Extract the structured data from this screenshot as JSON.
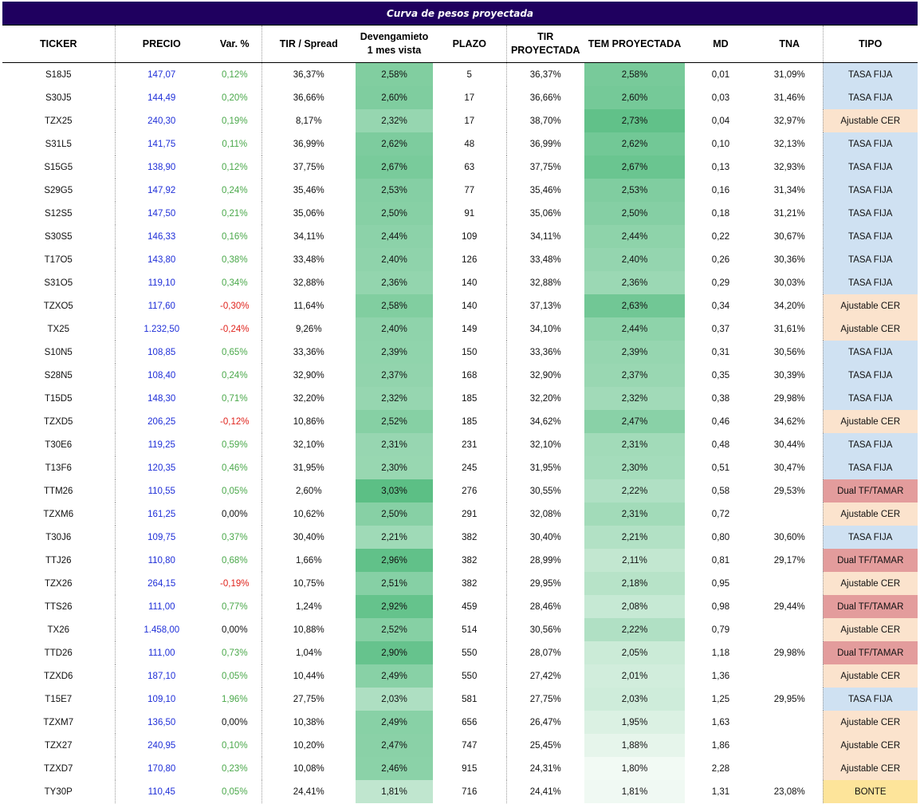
{
  "title": "Curva de pesos proyectada",
  "headers": {
    "ticker": "TICKER",
    "precio": "PRECIO",
    "var": "Var. %",
    "tir_spread": "TIR / Spread",
    "deveng_1": "Devengamieto",
    "deveng_2": "1 mes vista",
    "plazo": "PLAZO",
    "tirp_1": "TIR",
    "tirp_2": "PROYECTADA",
    "tem": "TEM PROYECTADA",
    "md": "MD",
    "tna": "TNA",
    "tipo": "TIPO"
  },
  "colors": {
    "title_bg": "#1f005f",
    "price": "#1f2fd8",
    "var_positive": "#4aa84a",
    "var_negative": "#e0241d",
    "tasa_fija": "#cfe1f2",
    "ajustable_cer": "#fbe3cd",
    "dual": "#e39c9c",
    "bonte": "#fde49a",
    "green_scale_low": "#f2faf4",
    "green_scale_high": "#56bd81"
  },
  "rows": [
    {
      "ticker": "S18J5",
      "precio": "147,07",
      "var": "0,12%",
      "tir": "36,37%",
      "deveng": "2,58%",
      "plazo": "5",
      "tirp": "36,37%",
      "tem": "2,58%",
      "md": "0,01",
      "tna": "31,09%",
      "tipo": "TASA FIJA"
    },
    {
      "ticker": "S30J5",
      "precio": "144,49",
      "var": "0,20%",
      "tir": "36,66%",
      "deveng": "2,60%",
      "plazo": "17",
      "tirp": "36,66%",
      "tem": "2,60%",
      "md": "0,03",
      "tna": "31,46%",
      "tipo": "TASA FIJA"
    },
    {
      "ticker": "TZX25",
      "precio": "240,30",
      "var": "0,19%",
      "tir": "8,17%",
      "deveng": "2,32%",
      "plazo": "17",
      "tirp": "38,70%",
      "tem": "2,73%",
      "md": "0,04",
      "tna": "32,97%",
      "tipo": "Ajustable CER"
    },
    {
      "ticker": "S31L5",
      "precio": "141,75",
      "var": "0,11%",
      "tir": "36,99%",
      "deveng": "2,62%",
      "plazo": "48",
      "tirp": "36,99%",
      "tem": "2,62%",
      "md": "0,10",
      "tna": "32,13%",
      "tipo": "TASA FIJA"
    },
    {
      "ticker": "S15G5",
      "precio": "138,90",
      "var": "0,12%",
      "tir": "37,75%",
      "deveng": "2,67%",
      "plazo": "63",
      "tirp": "37,75%",
      "tem": "2,67%",
      "md": "0,13",
      "tna": "32,93%",
      "tipo": "TASA FIJA"
    },
    {
      "ticker": "S29G5",
      "precio": "147,92",
      "var": "0,24%",
      "tir": "35,46%",
      "deveng": "2,53%",
      "plazo": "77",
      "tirp": "35,46%",
      "tem": "2,53%",
      "md": "0,16",
      "tna": "31,34%",
      "tipo": "TASA FIJA"
    },
    {
      "ticker": "S12S5",
      "precio": "147,50",
      "var": "0,21%",
      "tir": "35,06%",
      "deveng": "2,50%",
      "plazo": "91",
      "tirp": "35,06%",
      "tem": "2,50%",
      "md": "0,18",
      "tna": "31,21%",
      "tipo": "TASA FIJA"
    },
    {
      "ticker": "S30S5",
      "precio": "146,33",
      "var": "0,16%",
      "tir": "34,11%",
      "deveng": "2,44%",
      "plazo": "109",
      "tirp": "34,11%",
      "tem": "2,44%",
      "md": "0,22",
      "tna": "30,67%",
      "tipo": "TASA FIJA"
    },
    {
      "ticker": "T17O5",
      "precio": "143,80",
      "var": "0,38%",
      "tir": "33,48%",
      "deveng": "2,40%",
      "plazo": "126",
      "tirp": "33,48%",
      "tem": "2,40%",
      "md": "0,26",
      "tna": "30,36%",
      "tipo": "TASA FIJA"
    },
    {
      "ticker": "S31O5",
      "precio": "119,10",
      "var": "0,34%",
      "tir": "32,88%",
      "deveng": "2,36%",
      "plazo": "140",
      "tirp": "32,88%",
      "tem": "2,36%",
      "md": "0,29",
      "tna": "30,03%",
      "tipo": "TASA FIJA"
    },
    {
      "ticker": "TZXO5",
      "precio": "117,60",
      "var": "-0,30%",
      "tir": "11,64%",
      "deveng": "2,58%",
      "plazo": "140",
      "tirp": "37,13%",
      "tem": "2,63%",
      "md": "0,34",
      "tna": "34,20%",
      "tipo": "Ajustable CER"
    },
    {
      "ticker": "TX25",
      "precio": "1.232,50",
      "var": "-0,24%",
      "tir": "9,26%",
      "deveng": "2,40%",
      "plazo": "149",
      "tirp": "34,10%",
      "tem": "2,44%",
      "md": "0,37",
      "tna": "31,61%",
      "tipo": "Ajustable CER"
    },
    {
      "ticker": "S10N5",
      "precio": "108,85",
      "var": "0,65%",
      "tir": "33,36%",
      "deveng": "2,39%",
      "plazo": "150",
      "tirp": "33,36%",
      "tem": "2,39%",
      "md": "0,31",
      "tna": "30,56%",
      "tipo": "TASA FIJA"
    },
    {
      "ticker": "S28N5",
      "precio": "108,40",
      "var": "0,24%",
      "tir": "32,90%",
      "deveng": "2,37%",
      "plazo": "168",
      "tirp": "32,90%",
      "tem": "2,37%",
      "md": "0,35",
      "tna": "30,39%",
      "tipo": "TASA FIJA"
    },
    {
      "ticker": "T15D5",
      "precio": "148,30",
      "var": "0,71%",
      "tir": "32,20%",
      "deveng": "2,32%",
      "plazo": "185",
      "tirp": "32,20%",
      "tem": "2,32%",
      "md": "0,38",
      "tna": "29,98%",
      "tipo": "TASA FIJA"
    },
    {
      "ticker": "TZXD5",
      "precio": "206,25",
      "var": "-0,12%",
      "tir": "10,86%",
      "deveng": "2,52%",
      "plazo": "185",
      "tirp": "34,62%",
      "tem": "2,47%",
      "md": "0,46",
      "tna": "34,62%",
      "tipo": "Ajustable CER"
    },
    {
      "ticker": "T30E6",
      "precio": "119,25",
      "var": "0,59%",
      "tir": "32,10%",
      "deveng": "2,31%",
      "plazo": "231",
      "tirp": "32,10%",
      "tem": "2,31%",
      "md": "0,48",
      "tna": "30,44%",
      "tipo": "TASA FIJA"
    },
    {
      "ticker": "T13F6",
      "precio": "120,35",
      "var": "0,46%",
      "tir": "31,95%",
      "deveng": "2,30%",
      "plazo": "245",
      "tirp": "31,95%",
      "tem": "2,30%",
      "md": "0,51",
      "tna": "30,47%",
      "tipo": "TASA FIJA"
    },
    {
      "ticker": "TTM26",
      "precio": "110,55",
      "var": "0,05%",
      "tir": "2,60%",
      "deveng": "3,03%",
      "plazo": "276",
      "tirp": "30,55%",
      "tem": "2,22%",
      "md": "0,58",
      "tna": "29,53%",
      "tipo": "Dual TF/TAMAR"
    },
    {
      "ticker": "TZXM6",
      "precio": "161,25",
      "var": "0,00%",
      "tir": "10,62%",
      "deveng": "2,50%",
      "plazo": "291",
      "tirp": "32,08%",
      "tem": "2,31%",
      "md": "0,72",
      "tna": "",
      "tipo": "Ajustable CER"
    },
    {
      "ticker": "T30J6",
      "precio": "109,75",
      "var": "0,37%",
      "tir": "30,40%",
      "deveng": "2,21%",
      "plazo": "382",
      "tirp": "30,40%",
      "tem": "2,21%",
      "md": "0,80",
      "tna": "30,60%",
      "tipo": "TASA FIJA"
    },
    {
      "ticker": "TTJ26",
      "precio": "110,80",
      "var": "0,68%",
      "tir": "1,66%",
      "deveng": "2,96%",
      "plazo": "382",
      "tirp": "28,99%",
      "tem": "2,11%",
      "md": "0,81",
      "tna": "29,17%",
      "tipo": "Dual TF/TAMAR"
    },
    {
      "ticker": "TZX26",
      "precio": "264,15",
      "var": "-0,19%",
      "tir": "10,75%",
      "deveng": "2,51%",
      "plazo": "382",
      "tirp": "29,95%",
      "tem": "2,18%",
      "md": "0,95",
      "tna": "",
      "tipo": "Ajustable CER"
    },
    {
      "ticker": "TTS26",
      "precio": "111,00",
      "var": "0,77%",
      "tir": "1,24%",
      "deveng": "2,92%",
      "plazo": "459",
      "tirp": "28,46%",
      "tem": "2,08%",
      "md": "0,98",
      "tna": "29,44%",
      "tipo": "Dual TF/TAMAR"
    },
    {
      "ticker": "TX26",
      "precio": "1.458,00",
      "var": "0,00%",
      "tir": "10,88%",
      "deveng": "2,52%",
      "plazo": "514",
      "tirp": "30,56%",
      "tem": "2,22%",
      "md": "0,79",
      "tna": "",
      "tipo": "Ajustable CER"
    },
    {
      "ticker": "TTD26",
      "precio": "111,00",
      "var": "0,73%",
      "tir": "1,04%",
      "deveng": "2,90%",
      "plazo": "550",
      "tirp": "28,07%",
      "tem": "2,05%",
      "md": "1,18",
      "tna": "29,98%",
      "tipo": "Dual TF/TAMAR"
    },
    {
      "ticker": "TZXD6",
      "precio": "187,10",
      "var": "0,05%",
      "tir": "10,44%",
      "deveng": "2,49%",
      "plazo": "550",
      "tirp": "27,42%",
      "tem": "2,01%",
      "md": "1,36",
      "tna": "",
      "tipo": "Ajustable CER"
    },
    {
      "ticker": "T15E7",
      "precio": "109,10",
      "var": "1,96%",
      "tir": "27,75%",
      "deveng": "2,03%",
      "plazo": "581",
      "tirp": "27,75%",
      "tem": "2,03%",
      "md": "1,25",
      "tna": "29,95%",
      "tipo": "TASA FIJA"
    },
    {
      "ticker": "TZXM7",
      "precio": "136,50",
      "var": "0,00%",
      "tir": "10,38%",
      "deveng": "2,49%",
      "plazo": "656",
      "tirp": "26,47%",
      "tem": "1,95%",
      "md": "1,63",
      "tna": "",
      "tipo": "Ajustable CER"
    },
    {
      "ticker": "TZX27",
      "precio": "240,95",
      "var": "0,10%",
      "tir": "10,20%",
      "deveng": "2,47%",
      "plazo": "747",
      "tirp": "25,45%",
      "tem": "1,88%",
      "md": "1,86",
      "tna": "",
      "tipo": "Ajustable CER"
    },
    {
      "ticker": "TZXD7",
      "precio": "170,80",
      "var": "0,23%",
      "tir": "10,08%",
      "deveng": "2,46%",
      "plazo": "915",
      "tirp": "24,31%",
      "tem": "1,80%",
      "md": "2,28",
      "tna": "",
      "tipo": "Ajustable CER"
    },
    {
      "ticker": "TY30P",
      "precio": "110,45",
      "var": "0,05%",
      "tir": "24,41%",
      "deveng": "1,81%",
      "plazo": "716",
      "tirp": "24,41%",
      "tem": "1,81%",
      "md": "1,31",
      "tna": "23,08%",
      "tipo": "BONTE"
    }
  ]
}
